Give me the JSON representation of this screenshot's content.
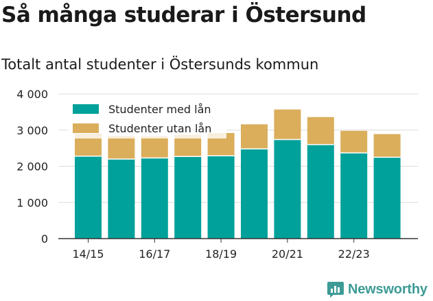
{
  "title": "Så många studerar i Östersund",
  "subtitle": "Totalt antal studenter i Östersunds kommun",
  "brand": {
    "name": "Newsworthy",
    "color": "#3d9b96"
  },
  "chart_data": {
    "type": "bar",
    "stacked": true,
    "categories": [
      "14/15",
      "15/16",
      "16/17",
      "17/18",
      "18/19",
      "19/20",
      "20/21",
      "21/22",
      "22/23",
      "23/24"
    ],
    "x_tick_labels": [
      "14/15",
      "16/17",
      "18/19",
      "20/21",
      "22/23"
    ],
    "series": [
      {
        "name": "Studenter med lån",
        "color": "#00a19a",
        "values": [
          2280,
          2200,
          2230,
          2270,
          2290,
          2480,
          2740,
          2600,
          2370,
          2250
        ]
      },
      {
        "name": "Studenter utan lån",
        "color": "#dbae5c",
        "values": [
          620,
          640,
          600,
          600,
          630,
          680,
          830,
          760,
          610,
          640
        ]
      }
    ],
    "ylim": [
      0,
      4000
    ],
    "y_ticks": [
      0,
      1000,
      2000,
      3000,
      4000
    ],
    "y_tick_labels": [
      "0",
      "1 000",
      "2 000",
      "3 000",
      "4 000"
    ],
    "grid": true,
    "legend_position": "top-left",
    "xlabel": "",
    "ylabel": ""
  }
}
